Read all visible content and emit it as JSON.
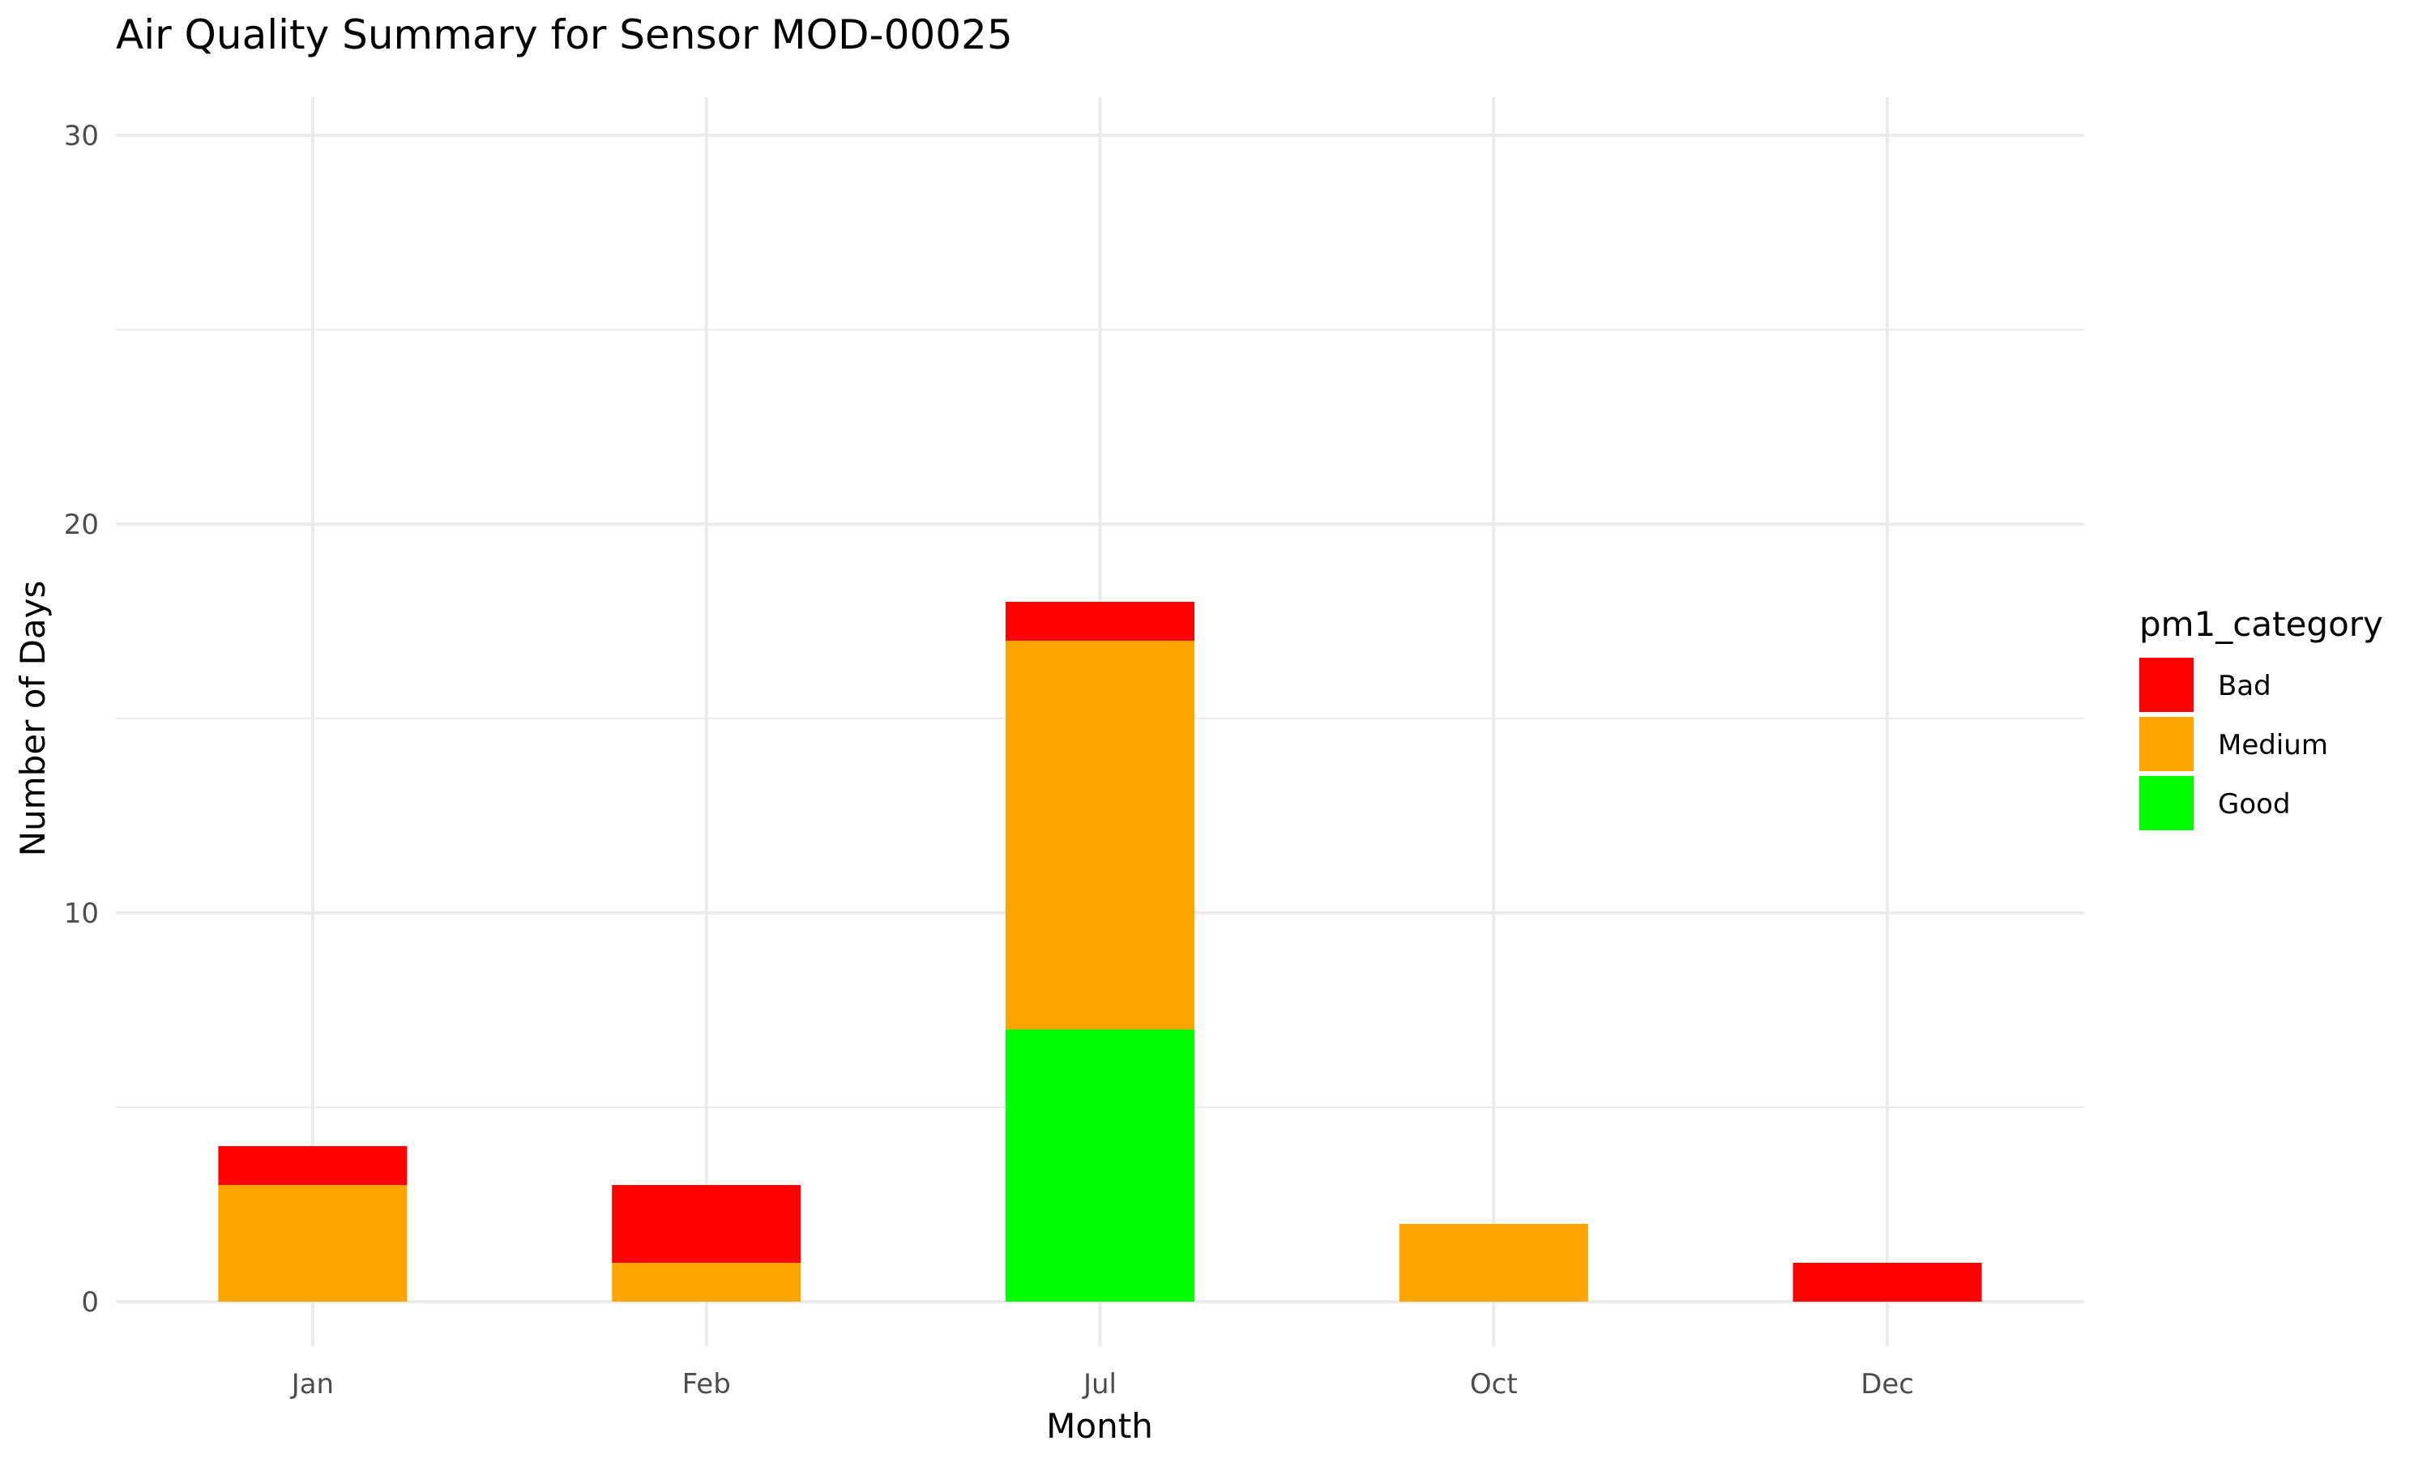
{
  "chart_data": {
    "type": "bar",
    "stacked": true,
    "title": "Air Quality Summary for Sensor MOD-00025",
    "xlabel": "Month",
    "ylabel": "Number of Days",
    "categories": [
      "Jan",
      "Feb",
      "Jul",
      "Oct",
      "Dec"
    ],
    "ylim": [
      0,
      30
    ],
    "yticks": [
      0,
      10,
      20,
      30
    ],
    "grid": true,
    "legend": {
      "title": "pm1_category",
      "placement": "right"
    },
    "series": [
      {
        "name": "Good",
        "color": "#00ff00",
        "values": [
          0,
          0,
          7,
          0,
          0
        ]
      },
      {
        "name": "Medium",
        "color": "#ffa500",
        "values": [
          3,
          1,
          10,
          2,
          0
        ]
      },
      {
        "name": "Bad",
        "color": "#ff0000",
        "values": [
          1,
          2,
          1,
          0,
          1
        ]
      }
    ],
    "legend_order": [
      "Bad",
      "Medium",
      "Good"
    ]
  }
}
